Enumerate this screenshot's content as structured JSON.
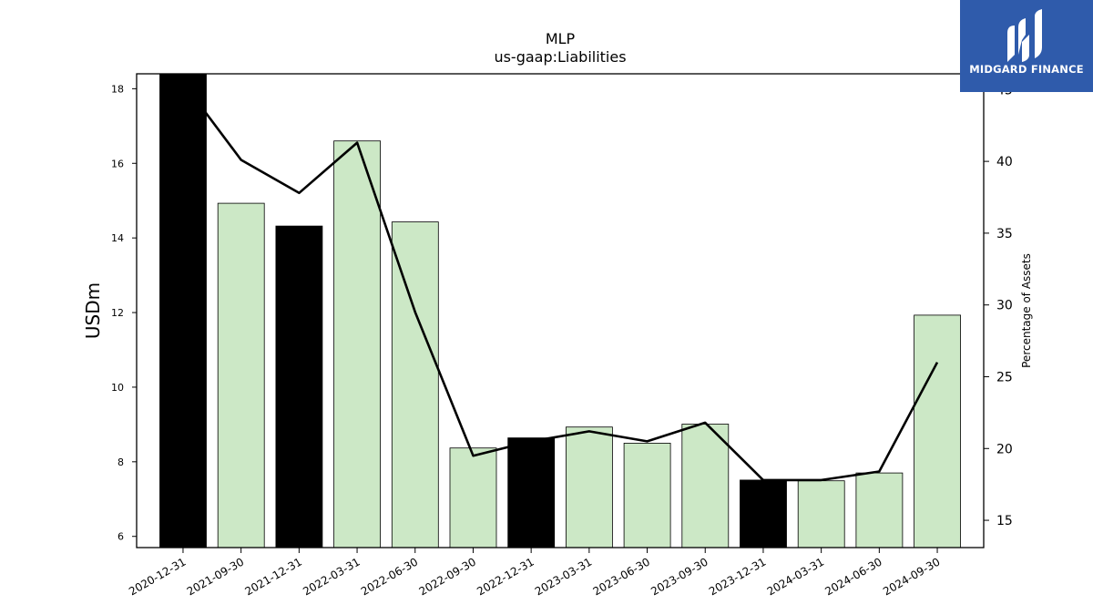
{
  "chart_data": {
    "type": "bar",
    "title": "MLP",
    "subtitle": "us-gaap:Liabilities",
    "ylabel": "USDm",
    "y2label": "Percentage of Assets",
    "categories": [
      "2020-12-31",
      "2021-09-30",
      "2021-12-31",
      "2022-03-31",
      "2022-06-30",
      "2022-09-30",
      "2022-12-31",
      "2023-03-31",
      "2023-06-30",
      "2023-09-30",
      "2023-12-31",
      "2024-03-31",
      "2024-06-30",
      "2024-09-30"
    ],
    "series": [
      {
        "type": "bar",
        "axis": "left",
        "values": [
          18.42,
          14.93,
          14.32,
          16.6,
          14.43,
          8.37,
          8.64,
          8.93,
          8.5,
          9.01,
          7.51,
          7.49,
          7.7,
          11.93
        ],
        "bar_colors": [
          "#000000",
          "#cce8c6",
          "#000000",
          "#cce8c6",
          "#cce8c6",
          "#cce8c6",
          "#000000",
          "#cce8c6",
          "#cce8c6",
          "#cce8c6",
          "#000000",
          "#cce8c6",
          "#cce8c6",
          "#cce8c6"
        ]
      },
      {
        "type": "line",
        "axis": "right",
        "color": "#000000",
        "values": [
          45.5,
          40.1,
          37.8,
          41.3,
          29.5,
          19.5,
          20.5,
          21.2,
          20.5,
          21.8,
          17.8,
          17.8,
          18.4,
          26.0
        ]
      }
    ],
    "ylim": [
      5.7,
      18.4
    ],
    "y2lim": [
      13.1,
      46.1
    ],
    "yticks": [
      6,
      8,
      10,
      12,
      14,
      16,
      18
    ],
    "y2ticks": [
      15,
      20,
      25,
      30,
      35,
      40,
      45
    ],
    "grid": false
  },
  "logo": {
    "text": "MIDGARD FINANCE",
    "background": "#2f5bab",
    "icon": "midgard-m-icon"
  }
}
